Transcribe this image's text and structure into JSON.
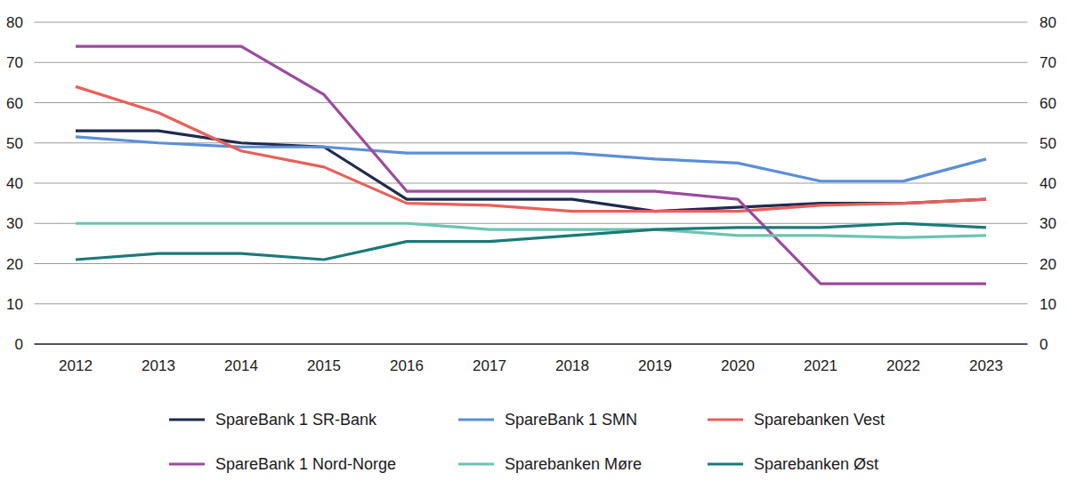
{
  "chart_data": {
    "type": "line",
    "categories": [
      "2012",
      "2013",
      "2014",
      "2015",
      "2016",
      "2017",
      "2018",
      "2019",
      "2020",
      "2021",
      "2022",
      "2023"
    ],
    "series": [
      {
        "name": "SpareBank 1 SR-Bank",
        "color": "#1f2a4d",
        "values": [
          53,
          53,
          50,
          49,
          36,
          36,
          36,
          33,
          34,
          35,
          35,
          36
        ]
      },
      {
        "name": "SpareBank 1 SMN",
        "color": "#5b8fd6",
        "values": [
          51.5,
          50,
          49,
          49,
          47.5,
          47.5,
          47.5,
          46,
          45,
          40.5,
          40.5,
          46
        ]
      },
      {
        "name": "Sparebanken Vest",
        "color": "#e8605a",
        "values": [
          64,
          57.5,
          48,
          44,
          35,
          34.5,
          33,
          33,
          33,
          34.5,
          35,
          36
        ]
      },
      {
        "name": "SpareBank 1 Nord-Norge",
        "color": "#9b4a9e",
        "values": [
          74,
          74,
          74,
          62,
          38,
          38,
          38,
          38,
          36,
          15,
          15,
          15
        ]
      },
      {
        "name": "Sparebanken Møre",
        "color": "#6cc4b0",
        "values": [
          30,
          30,
          30,
          30,
          30,
          28.5,
          28.5,
          28.5,
          27,
          27,
          26.5,
          27
        ]
      },
      {
        "name": "Sparebanken Øst",
        "color": "#1a7a78",
        "values": [
          21,
          22.5,
          22.5,
          21,
          25.5,
          25.5,
          27,
          28.5,
          29,
          29,
          30,
          29
        ]
      }
    ],
    "ylim": [
      0,
      80
    ],
    "yticks": [
      0,
      10,
      20,
      30,
      40,
      50,
      60,
      70,
      80
    ],
    "y2lim": [
      0,
      80
    ],
    "y2ticks": [
      0,
      10,
      20,
      30,
      40,
      50,
      60,
      70,
      80
    ],
    "grid": true,
    "legend": "bottom"
  }
}
